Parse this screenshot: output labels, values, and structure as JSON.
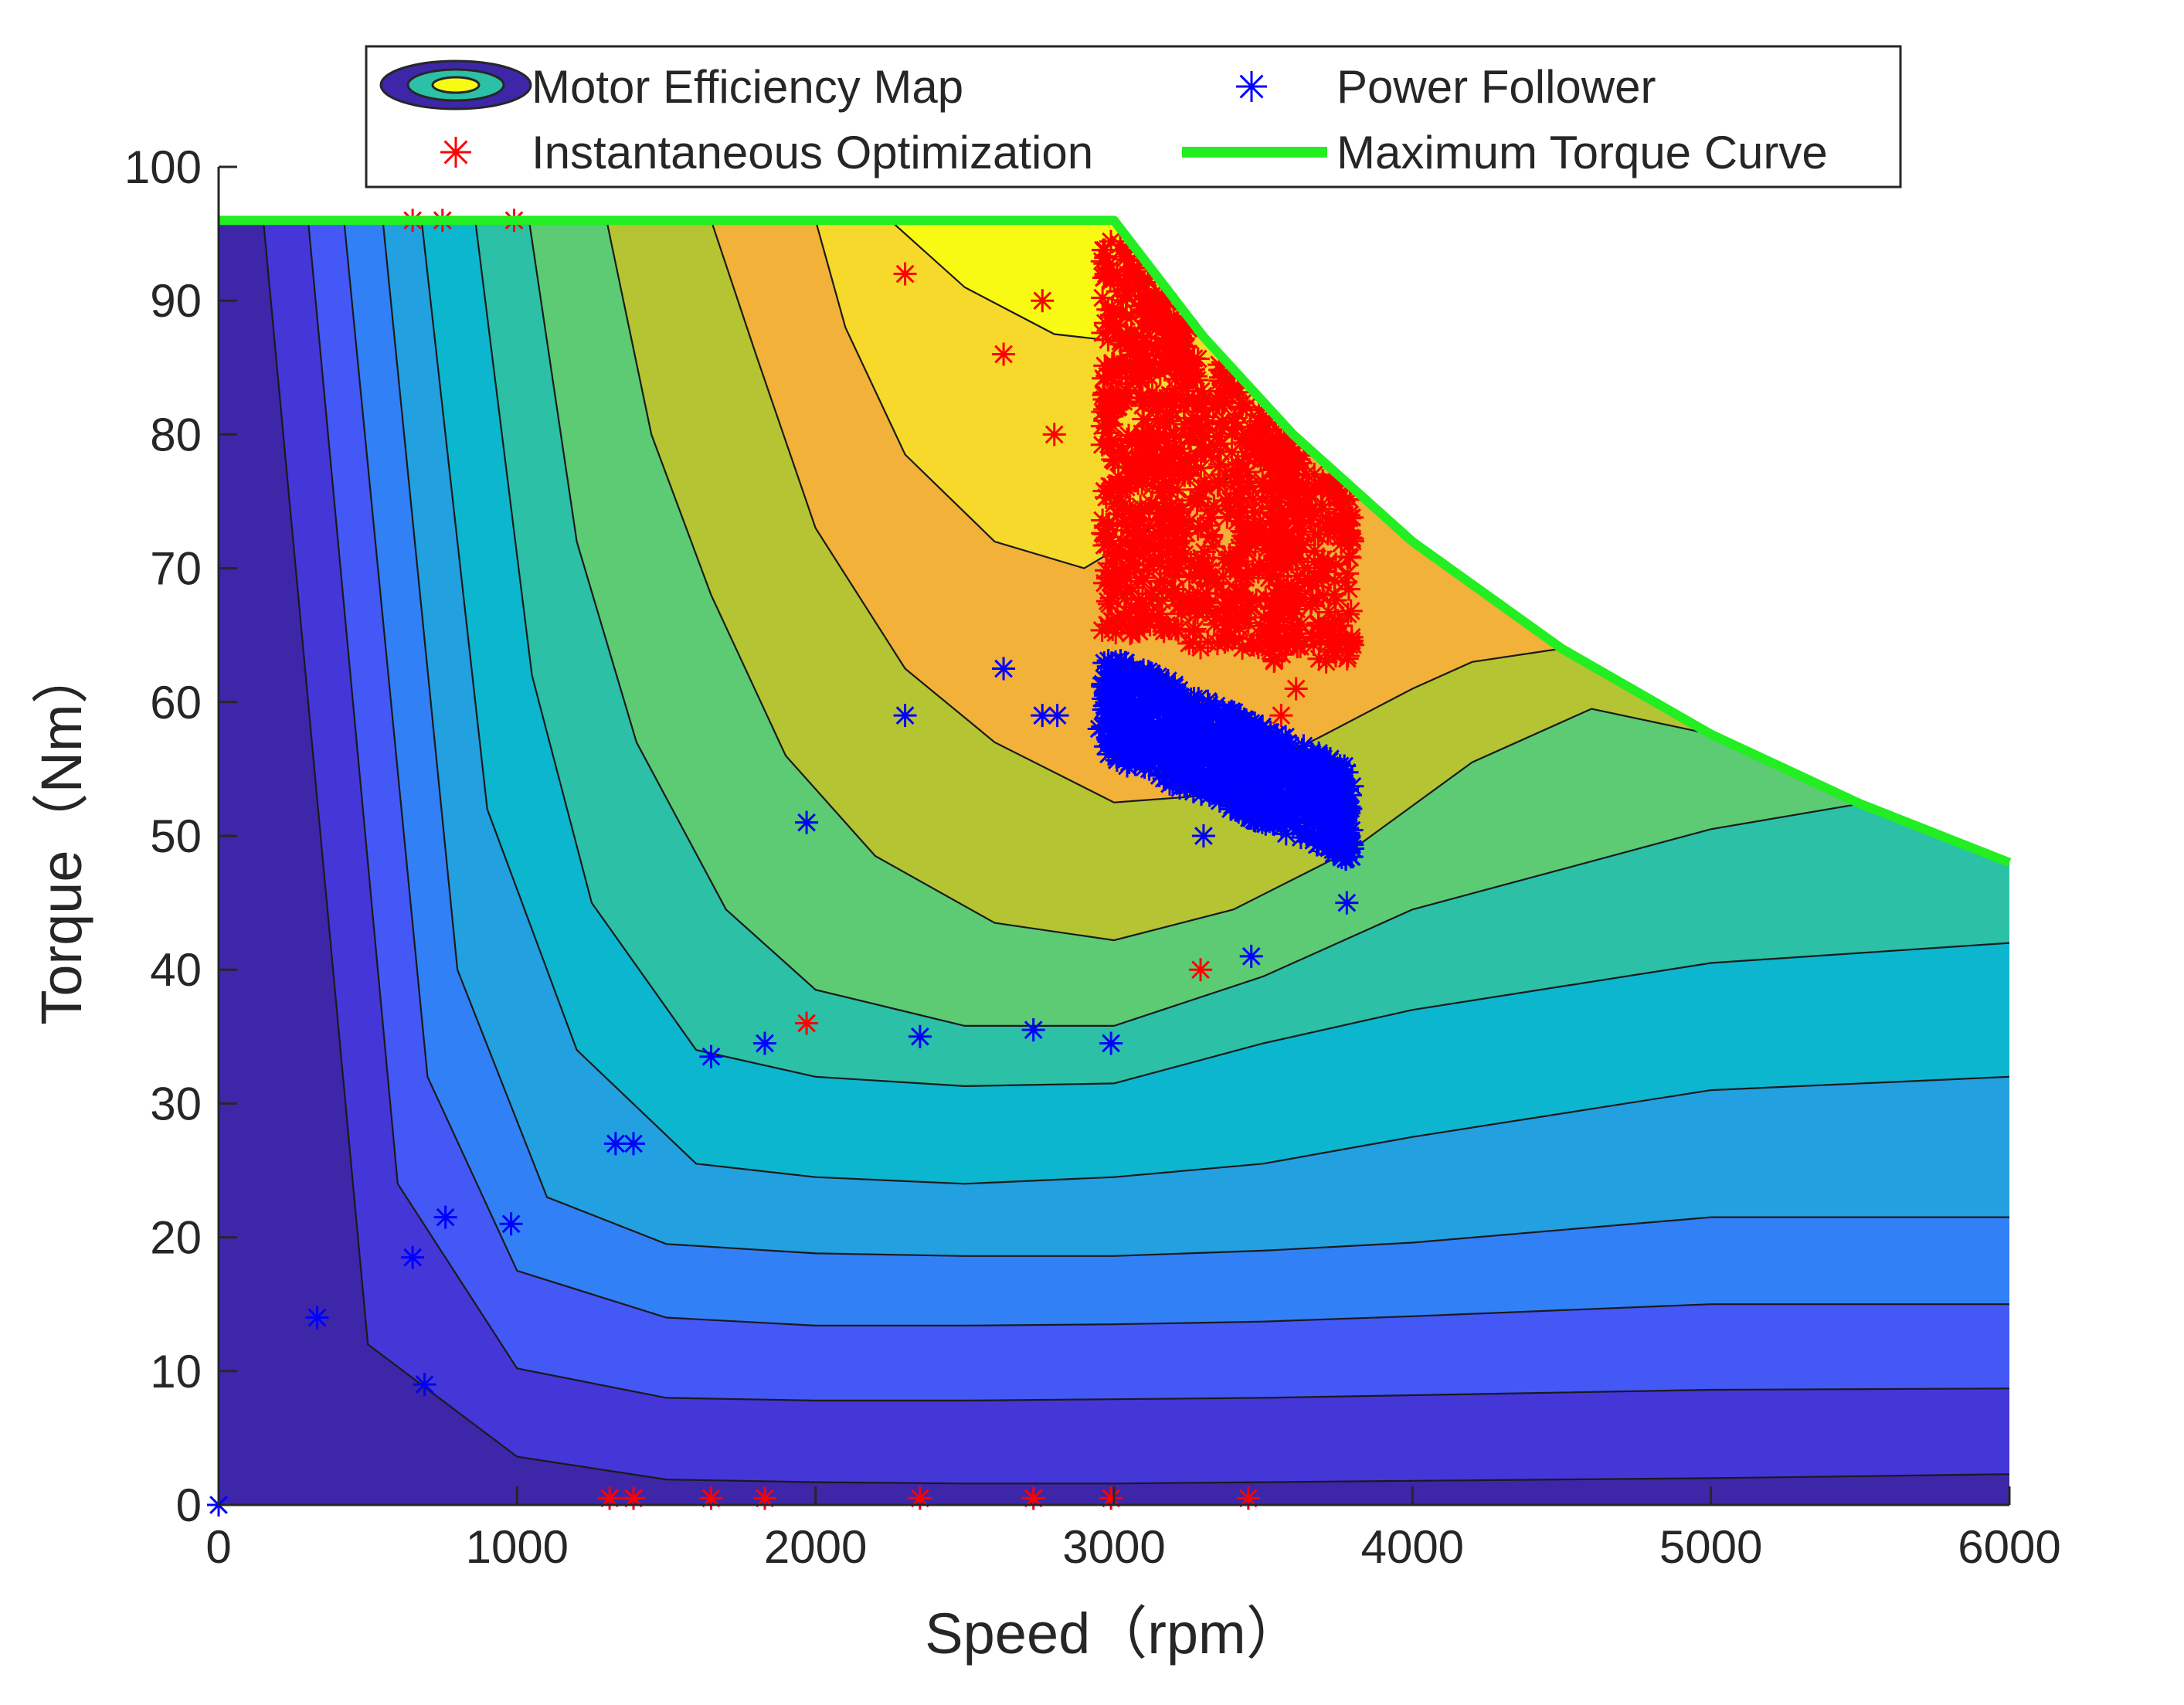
{
  "chart_data": {
    "type": "contourf+scatter",
    "title": "",
    "xlabel": "Speed（rpm）",
    "ylabel": "Torque（Nm）",
    "xlim": [
      0,
      6000
    ],
    "ylim": [
      0,
      100
    ],
    "x_ticks": [
      "0",
      "1000",
      "2000",
      "3000",
      "4000",
      "5000",
      "6000"
    ],
    "y_ticks": [
      "0",
      "10",
      "20",
      "30",
      "40",
      "50",
      "60",
      "70",
      "80",
      "90",
      "100"
    ],
    "legend": {
      "placement": "top",
      "entries": [
        {
          "label": "Motor Efficiency Map",
          "kind": "contour"
        },
        {
          "label": "Power Follower",
          "kind": "marker",
          "color": "#0000ff"
        },
        {
          "label": "Instantaneous Optimization",
          "kind": "marker",
          "color": "#ff0000"
        },
        {
          "label": "Maximum Torque Curve",
          "kind": "line",
          "color": "#22ee22"
        }
      ]
    },
    "max_torque_curve": {
      "name": "Maximum Torque Curve",
      "color": "#22ee22",
      "x": [
        0,
        3000,
        3300,
        3600,
        4000,
        4500,
        5000,
        5500,
        6000
      ],
      "y": [
        96,
        96,
        87.3,
        80,
        72,
        64,
        57.6,
        52.4,
        48
      ]
    },
    "efficiency_levels": {
      "colors": [
        "#3e26a8",
        "#4536d8",
        "#4458f5",
        "#3280f5",
        "#23a0e0",
        "#0cb6cf",
        "#2cc0a6",
        "#5ccb74",
        "#b5c433",
        "#f2b138",
        "#f6d92b",
        "#f9fa14"
      ],
      "boundaries": [
        {
          "x": [
            150,
            500,
            1000,
            1500,
            2000,
            2500,
            3000,
            3500,
            4000,
            5000,
            6000
          ],
          "y": [
            96,
            12.0,
            3.6,
            1.9,
            1.7,
            1.6,
            1.6,
            1.7,
            1.8,
            2.0,
            2.3
          ]
        },
        {
          "x": [
            300,
            600,
            1000,
            1500,
            2000,
            2500,
            3000,
            3500,
            4000,
            5000,
            6000
          ],
          "y": [
            96,
            24.0,
            10.2,
            8.0,
            7.8,
            7.8,
            7.9,
            8.0,
            8.2,
            8.6,
            8.7
          ]
        },
        {
          "x": [
            420,
            700,
            1000,
            1500,
            2000,
            2500,
            3000,
            3500,
            4000,
            5000,
            6000
          ],
          "y": [
            96,
            32.0,
            17.5,
            14.0,
            13.4,
            13.4,
            13.5,
            13.7,
            14.1,
            15.0,
            15.0
          ]
        },
        {
          "x": [
            550,
            800,
            1100,
            1500,
            2000,
            2500,
            3000,
            3500,
            4000,
            5000,
            6000
          ],
          "y": [
            96,
            40.0,
            23.0,
            19.5,
            18.8,
            18.6,
            18.6,
            19.0,
            19.6,
            21.5,
            21.5
          ]
        },
        {
          "x": [
            680,
            900,
            1200,
            1600,
            2000,
            2500,
            3000,
            3500,
            4000,
            5000,
            6000
          ],
          "y": [
            96,
            52.0,
            34.0,
            25.5,
            24.5,
            24.0,
            24.5,
            25.5,
            27.5,
            31.0,
            32.0
          ]
        },
        {
          "x": [
            860,
            1050,
            1250,
            1600,
            2000,
            2500,
            3000,
            3500,
            4000,
            5000,
            6000
          ],
          "y": [
            96,
            62.0,
            45.0,
            34.0,
            32.0,
            31.3,
            31.5,
            34.5,
            37.0,
            40.5,
            42.0
          ]
        },
        {
          "x": [
            1040,
            1200,
            1400,
            1700,
            2000,
            2500,
            3000,
            3500,
            4000,
            5000,
            5500
          ],
          "y": [
            96,
            72.0,
            57.0,
            44.5,
            38.5,
            35.8,
            35.8,
            39.5,
            44.5,
            50.5,
            52.4
          ]
        },
        {
          "x": [
            1300,
            1450,
            1650,
            1900,
            2200,
            2600,
            3000,
            3400,
            3800,
            4200,
            4600,
            5000
          ],
          "y": [
            96,
            80.0,
            68.0,
            56.0,
            48.5,
            43.5,
            42.2,
            44.5,
            49.0,
            55.5,
            59.5,
            57.6
          ]
        },
        {
          "x": [
            1650,
            1800,
            2000,
            2300,
            2600,
            3000,
            3300,
            3700,
            4000,
            4200,
            4500
          ],
          "y": [
            96,
            86.0,
            73.0,
            62.5,
            57.0,
            52.5,
            53.0,
            57.5,
            61.0,
            63.0,
            64.0
          ]
        },
        {
          "x": [
            2000,
            2100,
            2300,
            2600,
            2900,
            3200,
            3600
          ],
          "y": [
            96,
            88.0,
            78.5,
            72.0,
            70.0,
            74.0,
            80.0
          ]
        },
        {
          "x": [
            2250,
            2500,
            2800,
            3000,
            3100
          ],
          "y": [
            96,
            91.0,
            87.5,
            87.0,
            93.5
          ]
        }
      ]
    },
    "series": [
      {
        "name": "Instantaneous Optimization",
        "color": "#ff0000",
        "marker": "*",
        "points": [
          [
            650,
            96
          ],
          [
            750,
            96
          ],
          [
            990,
            96
          ],
          [
            2300,
            92
          ],
          [
            2630,
            86
          ],
          [
            2760,
            90
          ],
          [
            2800,
            80
          ],
          [
            1970,
            36
          ],
          [
            3290,
            40
          ],
          [
            3610,
            61
          ],
          [
            3560,
            59
          ],
          [
            1310,
            0.5
          ],
          [
            1390,
            0.5
          ],
          [
            1650,
            0.5
          ],
          [
            1830,
            0.5
          ],
          [
            2350,
            0.5
          ],
          [
            2730,
            0.5
          ],
          [
            2990,
            0.5
          ],
          [
            3450,
            0.5
          ]
        ],
        "clusters": [
          {
            "x_range": [
              2960,
              3250
            ],
            "y_range": [
              65,
              95
            ],
            "count": 520
          },
          {
            "x_range": [
              3250,
              3620
            ],
            "y_range": [
              64,
              86
            ],
            "count": 380
          },
          {
            "x_range": [
              3520,
              3800
            ],
            "y_range": [
              63,
              80
            ],
            "count": 200
          }
        ]
      },
      {
        "name": "Power Follower",
        "color": "#0000ff",
        "marker": "*",
        "points": [
          [
            0,
            0
          ],
          [
            330,
            14
          ],
          [
            650,
            18.5
          ],
          [
            760,
            21.5
          ],
          [
            980,
            21
          ],
          [
            690,
            9
          ],
          [
            1330,
            27
          ],
          [
            1390,
            27
          ],
          [
            1650,
            33.5
          ],
          [
            1830,
            34.5
          ],
          [
            2350,
            35
          ],
          [
            2730,
            35.5
          ],
          [
            2990,
            34.5
          ],
          [
            1970,
            51
          ],
          [
            2300,
            59
          ],
          [
            2630,
            62.5
          ],
          [
            2760,
            59
          ],
          [
            2810,
            59
          ],
          [
            2950,
            58
          ],
          [
            3300,
            50
          ],
          [
            3460,
            41
          ],
          [
            3780,
            45
          ]
        ],
        "band": {
          "x_range": [
            2960,
            3800
          ],
          "y_top": [
            64,
            55
          ],
          "y_bottom": [
            56,
            48
          ],
          "count": 900
        }
      }
    ]
  }
}
